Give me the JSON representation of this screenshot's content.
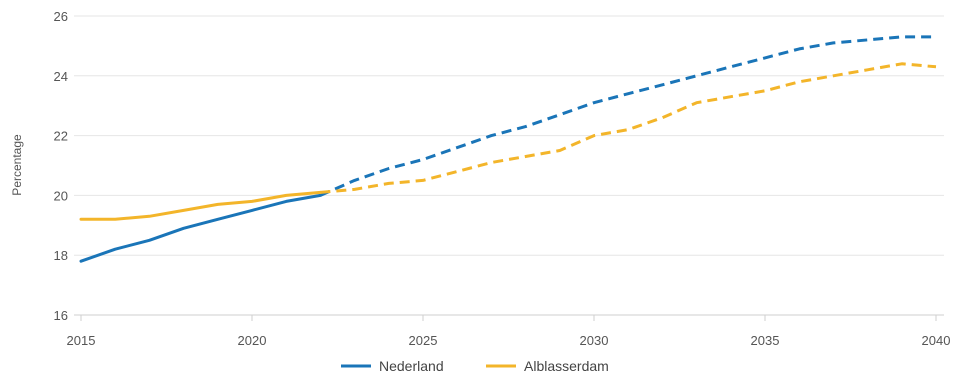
{
  "chart_data": {
    "type": "line",
    "title": "",
    "xlabel": "",
    "ylabel": "Percentage",
    "xlim": [
      2015,
      2040
    ],
    "ylim": [
      16,
      26
    ],
    "x_ticks": [
      2015,
      2020,
      2025,
      2030,
      2035,
      2040
    ],
    "y_ticks": [
      16,
      18,
      20,
      22,
      24,
      26
    ],
    "grid": "horizontal",
    "legend_position": "bottom",
    "series": [
      {
        "name": "Nederland",
        "color": "#1a75b8",
        "solid_until": 2022,
        "points": [
          [
            2015,
            17.8
          ],
          [
            2016,
            18.2
          ],
          [
            2017,
            18.5
          ],
          [
            2018,
            18.9
          ],
          [
            2019,
            19.2
          ],
          [
            2020,
            19.5
          ],
          [
            2021,
            19.8
          ],
          [
            2022,
            20.0
          ],
          [
            2023,
            20.5
          ],
          [
            2024,
            20.9
          ],
          [
            2025,
            21.2
          ],
          [
            2026,
            21.6
          ],
          [
            2027,
            22.0
          ],
          [
            2028,
            22.3
          ],
          [
            2029,
            22.7
          ],
          [
            2030,
            23.1
          ],
          [
            2031,
            23.4
          ],
          [
            2032,
            23.7
          ],
          [
            2033,
            24.0
          ],
          [
            2034,
            24.3
          ],
          [
            2035,
            24.6
          ],
          [
            2036,
            24.9
          ],
          [
            2037,
            25.1
          ],
          [
            2038,
            25.2
          ],
          [
            2039,
            25.3
          ],
          [
            2040,
            25.3
          ]
        ]
      },
      {
        "name": "Alblasserdam",
        "color": "#f3b52a",
        "solid_until": 2022,
        "points": [
          [
            2015,
            19.2
          ],
          [
            2016,
            19.2
          ],
          [
            2017,
            19.3
          ],
          [
            2018,
            19.5
          ],
          [
            2019,
            19.7
          ],
          [
            2020,
            19.8
          ],
          [
            2021,
            20.0
          ],
          [
            2022,
            20.1
          ],
          [
            2023,
            20.2
          ],
          [
            2024,
            20.4
          ],
          [
            2025,
            20.5
          ],
          [
            2026,
            20.8
          ],
          [
            2027,
            21.1
          ],
          [
            2028,
            21.3
          ],
          [
            2029,
            21.5
          ],
          [
            2030,
            22.0
          ],
          [
            2031,
            22.2
          ],
          [
            2032,
            22.6
          ],
          [
            2033,
            23.1
          ],
          [
            2034,
            23.3
          ],
          [
            2035,
            23.5
          ],
          [
            2036,
            23.8
          ],
          [
            2037,
            24.0
          ],
          [
            2038,
            24.2
          ],
          [
            2039,
            24.4
          ],
          [
            2040,
            24.3
          ]
        ]
      }
    ]
  }
}
